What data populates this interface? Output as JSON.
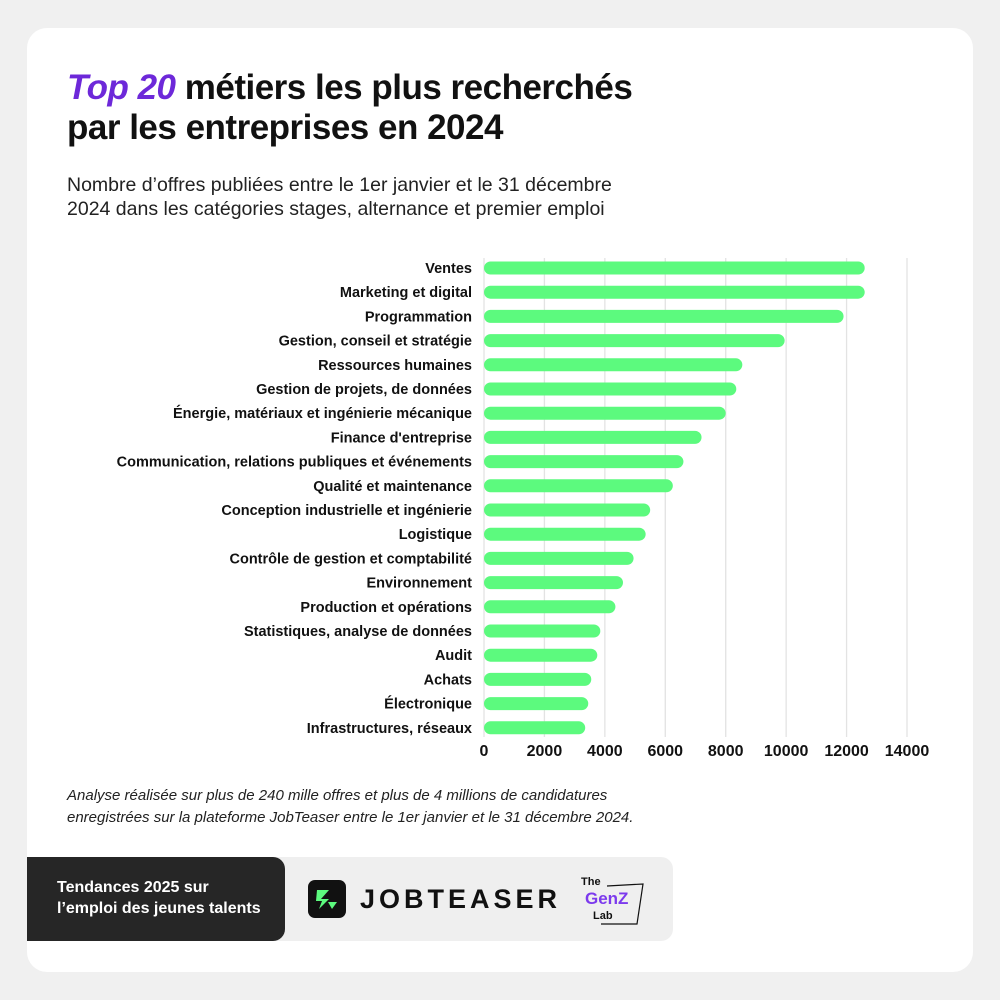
{
  "header": {
    "title_accent": "Top 20",
    "title_rest_1": "métiers les plus recherchés",
    "title_line_2": "par les entreprises en 2024",
    "subtitle_line_1": "Nombre d’offres publiées entre le 1er janvier et le 31 décembre",
    "subtitle_line_2": "2024 dans les catégories stages, alternance et premier emploi"
  },
  "chart_data": {
    "type": "bar",
    "orientation": "horizontal",
    "categories": [
      "Ventes",
      "Marketing et digital",
      "Programmation",
      "Gestion, conseil et stratégie",
      "Ressources humaines",
      "Gestion de projets, de données",
      "Énergie, matériaux et ingénierie mécanique",
      "Finance d'entreprise",
      "Communication, relations publiques et événements",
      "Qualité et maintenance",
      "Conception industrielle et ingénierie",
      "Logistique",
      "Contrôle de gestion et comptabilité",
      "Environnement",
      "Production et opérations",
      "Statistiques, analyse de données",
      "Audit",
      "Achats",
      "Électronique",
      "Infrastructures, réseaux"
    ],
    "values": [
      12600,
      12600,
      11900,
      9950,
      8550,
      8350,
      8000,
      7200,
      6600,
      6250,
      5500,
      5350,
      4950,
      4600,
      4350,
      3850,
      3750,
      3550,
      3450,
      3350
    ],
    "xlim": [
      0,
      14000
    ],
    "xticks": [
      "0",
      "2000",
      "4000",
      "6000",
      "8000",
      "10000",
      "12000",
      "14000"
    ],
    "grid": true,
    "bar_color": "#5cfa7e",
    "grid_color": "#e3e3e3"
  },
  "footnote": {
    "line_1": "Analyse réalisée sur plus de 240 mille offres et plus de 4 millions de candidatures",
    "line_2": "enregistrées sur la plateforme JobTeaser entre le 1er janvier et le 31 décembre 2024."
  },
  "footer": {
    "tag_line_1": "Tendances 2025 sur",
    "tag_line_2": "l’emploi des jeunes talents",
    "brand_name": "JOBTEASER",
    "partner_the": "The",
    "partner_genz": "GenZ",
    "partner_lab": "Lab",
    "brand_icon": "jobteaser-logo-icon",
    "partner_icon": "genz-lab-logo-icon"
  },
  "colors": {
    "accent": "#6d28d9",
    "text": "#111111",
    "tag_background": "#262626"
  }
}
